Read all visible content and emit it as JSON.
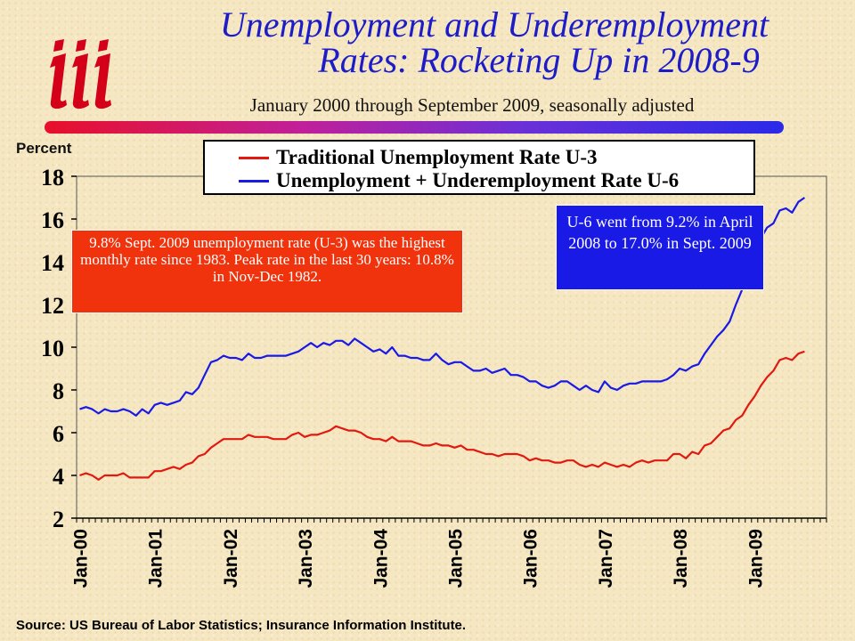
{
  "header": {
    "title_line1": "Unemployment and Underemployment",
    "title_line2": "Rates: Rocketing Up in 2008-9",
    "subtitle": "January 2000 through September 2009, seasonally adjusted"
  },
  "colors": {
    "title": "#1c1cc8",
    "u3": "#e01a10",
    "u6": "#1a1ae6",
    "note_red_bg": "#f0330c",
    "note_blue_bg": "#1a1ae6",
    "logo_red": "#d4001a"
  },
  "logo": {
    "icon": "iii-logo"
  },
  "annotations": {
    "red_note": "9.8% Sept. 2009 unemployment rate (U-3) was the highest monthly rate since 1983. Peak rate in the last 30 years: 10.8% in Nov-Dec 1982.",
    "blue_note": "U-6 went from 9.2% in April 2008 to 17.0% in Sept. 2009"
  },
  "source": "Source: US Bureau of Labor Statistics; Insurance Information Institute.",
  "chart_data": {
    "type": "line",
    "ylabel": "Percent",
    "ylim": [
      2,
      18
    ],
    "yticks": [
      2,
      4,
      6,
      8,
      10,
      12,
      14,
      16,
      18
    ],
    "xticks": [
      "Jan-00",
      "Jan-01",
      "Jan-02",
      "Jan-03",
      "Jan-04",
      "Jan-05",
      "Jan-06",
      "Jan-07",
      "Jan-08",
      "Jan-09"
    ],
    "x_start": "Jan-00",
    "x_end": "Sep-09",
    "grid": false,
    "legend_position": "top",
    "series": [
      {
        "name": "Traditional Unemployment Rate U-3",
        "color": "#e01a10",
        "values": [
          4.0,
          4.1,
          4.0,
          3.8,
          4.0,
          4.0,
          4.0,
          4.1,
          3.9,
          3.9,
          3.9,
          3.9,
          4.2,
          4.2,
          4.3,
          4.4,
          4.3,
          4.5,
          4.6,
          4.9,
          5.0,
          5.3,
          5.5,
          5.7,
          5.7,
          5.7,
          5.7,
          5.9,
          5.8,
          5.8,
          5.8,
          5.7,
          5.7,
          5.7,
          5.9,
          6.0,
          5.8,
          5.9,
          5.9,
          6.0,
          6.1,
          6.3,
          6.2,
          6.1,
          6.1,
          6.0,
          5.8,
          5.7,
          5.7,
          5.6,
          5.8,
          5.6,
          5.6,
          5.6,
          5.5,
          5.4,
          5.4,
          5.5,
          5.4,
          5.4,
          5.3,
          5.4,
          5.2,
          5.2,
          5.1,
          5.0,
          5.0,
          4.9,
          5.0,
          5.0,
          5.0,
          4.9,
          4.7,
          4.8,
          4.7,
          4.7,
          4.6,
          4.6,
          4.7,
          4.7,
          4.5,
          4.4,
          4.5,
          4.4,
          4.6,
          4.5,
          4.4,
          4.5,
          4.4,
          4.6,
          4.7,
          4.6,
          4.7,
          4.7,
          4.7,
          5.0,
          5.0,
          4.8,
          5.1,
          5.0,
          5.4,
          5.5,
          5.8,
          6.1,
          6.2,
          6.6,
          6.8,
          7.3,
          7.7,
          8.2,
          8.6,
          8.9,
          9.4,
          9.5,
          9.4,
          9.7,
          9.8
        ]
      },
      {
        "name": "Unemployment + Underemployment Rate U-6",
        "color": "#1a1ae6",
        "values": [
          7.1,
          7.2,
          7.1,
          6.9,
          7.1,
          7.0,
          7.0,
          7.1,
          7.0,
          6.8,
          7.1,
          6.9,
          7.3,
          7.4,
          7.3,
          7.4,
          7.5,
          7.9,
          7.8,
          8.1,
          8.7,
          9.3,
          9.4,
          9.6,
          9.5,
          9.5,
          9.4,
          9.7,
          9.5,
          9.5,
          9.6,
          9.6,
          9.6,
          9.6,
          9.7,
          9.8,
          10.0,
          10.2,
          10.0,
          10.2,
          10.1,
          10.3,
          10.3,
          10.1,
          10.4,
          10.2,
          10.0,
          9.8,
          9.9,
          9.7,
          10.0,
          9.6,
          9.6,
          9.5,
          9.5,
          9.4,
          9.4,
          9.7,
          9.4,
          9.2,
          9.3,
          9.3,
          9.1,
          8.9,
          8.9,
          9.0,
          8.8,
          8.9,
          9.0,
          8.7,
          8.7,
          8.6,
          8.4,
          8.4,
          8.2,
          8.1,
          8.2,
          8.4,
          8.4,
          8.2,
          8.0,
          8.2,
          8.0,
          7.9,
          8.4,
          8.1,
          8.0,
          8.2,
          8.3,
          8.3,
          8.4,
          8.4,
          8.4,
          8.4,
          8.5,
          8.7,
          9.0,
          8.9,
          9.1,
          9.2,
          9.7,
          10.1,
          10.5,
          10.8,
          11.2,
          12.0,
          12.7,
          13.6,
          14.0,
          15.1,
          15.6,
          15.8,
          16.4,
          16.5,
          16.3,
          16.8,
          17.0
        ]
      }
    ]
  }
}
